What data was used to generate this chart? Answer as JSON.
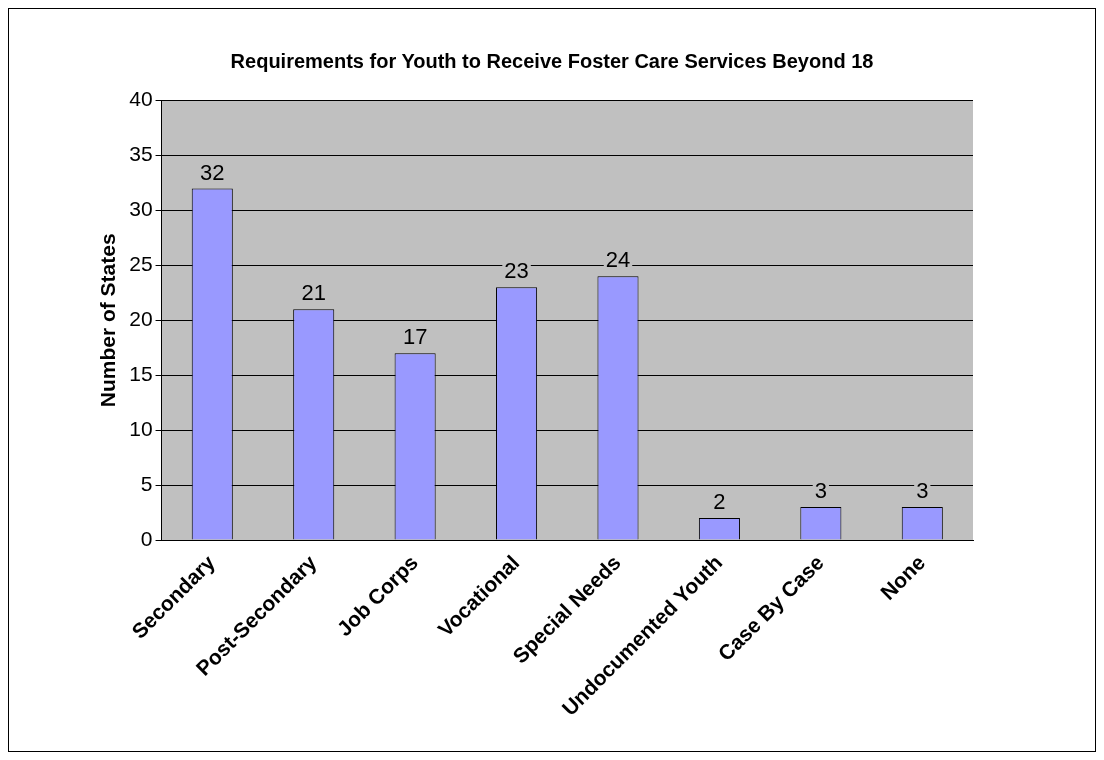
{
  "chart_data": {
    "type": "bar",
    "title": "Requirements for Youth to Receive Foster Care Services Beyond 18",
    "ylabel": "Number of States",
    "categories": [
      "Secondary",
      "Post-Secondary",
      "Job Corps",
      "Vocational",
      "Special Needs",
      "Undocumented Youth",
      "Case By Case",
      "None"
    ],
    "values": [
      32,
      21,
      17,
      23,
      24,
      2,
      3,
      3
    ],
    "color": "#9999ff",
    "ylim": [
      0,
      40
    ],
    "yticks": [
      0,
      5,
      10,
      15,
      20,
      25,
      30,
      35,
      40
    ],
    "grid": "y",
    "data_labels": true,
    "legend": false
  }
}
